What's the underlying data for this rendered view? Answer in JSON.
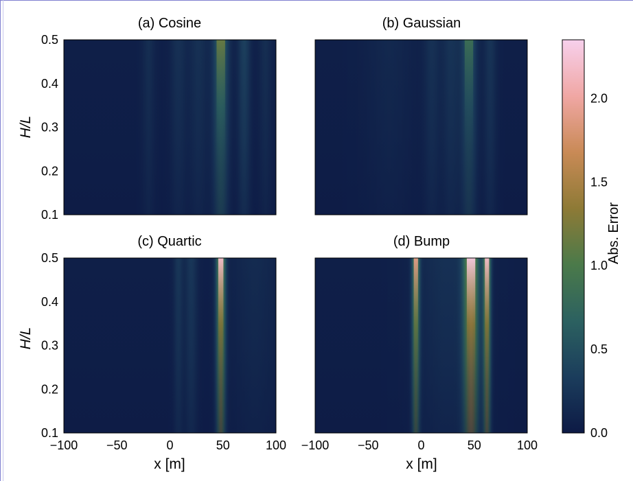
{
  "chart_data": {
    "type": "heatmap",
    "layout": "2x2 panels with shared colorbar",
    "colorbar": {
      "label": "Abs. Error",
      "range": [
        0.0,
        2.35
      ],
      "ticks": [
        0.0,
        0.5,
        1.0,
        1.5,
        2.0
      ],
      "tick_labels": [
        "0.0",
        "0.5",
        "1.0",
        "1.5",
        "2.0"
      ],
      "colormap": "cubehelix-like (dark navy → teal → olive/gold → salmon → pink)",
      "colors": [
        "#0d1a45",
        "#1b3d5c",
        "#2c6160",
        "#4b7a4a",
        "#8e7a36",
        "#c98a56",
        "#f0a7a4",
        "#f7d0ec"
      ]
    },
    "xaxis": {
      "label": "x [m]",
      "range": [
        -100,
        100
      ],
      "ticks": [
        -100,
        -50,
        0,
        50,
        100
      ],
      "tick_labels": [
        "−100",
        "−50",
        "0",
        "50",
        "100"
      ]
    },
    "yaxis": {
      "label": "H/L",
      "range": [
        0.1,
        0.5
      ],
      "ticks": [
        0.1,
        0.2,
        0.3,
        0.4,
        0.5
      ],
      "tick_labels": [
        "0.1",
        "0.2",
        "0.3",
        "0.4",
        "0.5"
      ]
    },
    "panels": [
      {
        "title": "(a) Cosine",
        "features": [
          {
            "x": -20,
            "width": 4,
            "peak": 0.25,
            "ymin": 0.1
          },
          {
            "x": 8,
            "width": 5,
            "peak": 0.3,
            "ymin": 0.1
          },
          {
            "x": 27,
            "width": 6,
            "peak": 0.3,
            "ymin": 0.1
          },
          {
            "x": 48,
            "width": 5,
            "peak": 1.15,
            "ymin": 0.1
          },
          {
            "x": 70,
            "width": 4,
            "peak": 0.55,
            "ymin": 0.1
          },
          {
            "x": 90,
            "width": 4,
            "peak": 0.25,
            "ymin": 0.1
          }
        ]
      },
      {
        "title": "(b) Gaussian",
        "features": [
          {
            "x": -30,
            "width": 15,
            "peak": 0.15,
            "ymin": 0.1
          },
          {
            "x": 10,
            "width": 5,
            "peak": 0.3,
            "ymin": 0.1
          },
          {
            "x": 28,
            "width": 6,
            "peak": 0.35,
            "ymin": 0.1
          },
          {
            "x": 45,
            "width": 5,
            "peak": 0.85,
            "ymin": 0.1
          },
          {
            "x": 65,
            "width": 4,
            "peak": 0.35,
            "ymin": 0.1
          }
        ]
      },
      {
        "title": "(c) Quartic",
        "features": [
          {
            "x": 8,
            "width": 3,
            "peak": 0.4,
            "ymin": 0.1
          },
          {
            "x": 20,
            "width": 4,
            "peak": 0.4,
            "ymin": 0.1
          },
          {
            "x": 48,
            "width": 3,
            "peak": 2.2,
            "ymin": 0.1
          },
          {
            "x": 80,
            "width": 15,
            "peak": 0.2,
            "ymin": 0.1
          }
        ]
      },
      {
        "title": "(d) Bump",
        "features": [
          {
            "x": -5,
            "width": 2.5,
            "peak": 1.9,
            "ymin": 0.1
          },
          {
            "x": 47,
            "width": 5,
            "peak": 2.3,
            "ymin": 0.1
          },
          {
            "x": 62,
            "width": 2.5,
            "peak": 2.2,
            "ymin": 0.1
          },
          {
            "x": 25,
            "width": 20,
            "peak": 0.3,
            "ymin": 0.1
          }
        ]
      }
    ]
  }
}
